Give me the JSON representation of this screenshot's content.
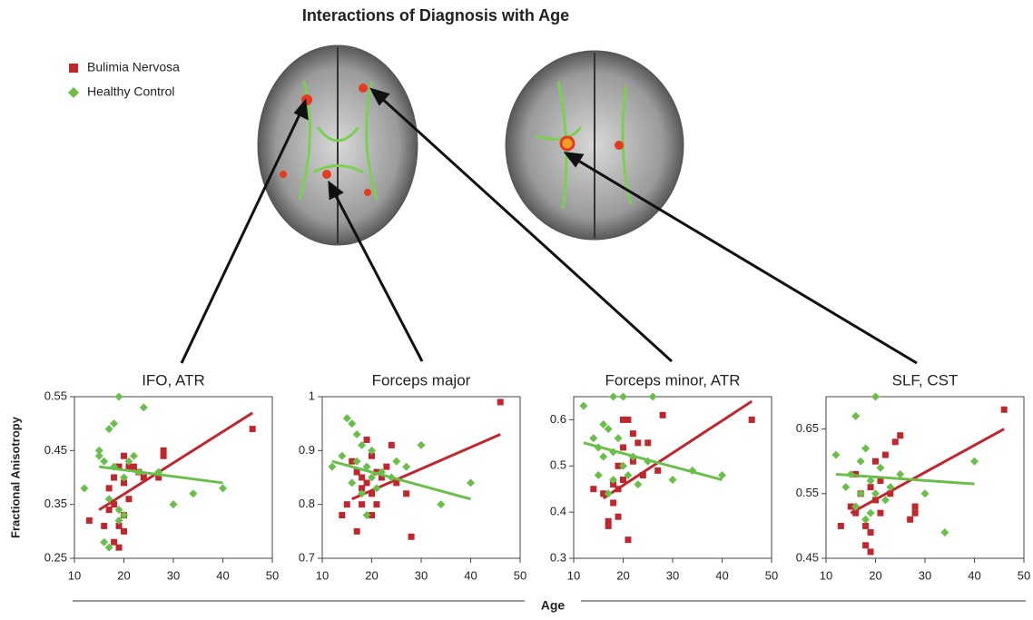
{
  "title": "Interactions of Diagnosis with Age",
  "xlabel": "Age",
  "chart_data": [
    {
      "type": "scatter",
      "title": "IFO, ATR",
      "ylabel": "Fractional Anisotropy",
      "xlim": [
        10,
        50
      ],
      "xticks": [
        10,
        20,
        30,
        40,
        50
      ],
      "ylim": [
        0.25,
        0.55
      ],
      "yticks": [
        0.25,
        0.35,
        0.45,
        0.55
      ],
      "series": [
        {
          "name": "Bulimia Nervosa",
          "color": "#c0272d",
          "marker": "square",
          "x": [
            13,
            16,
            17,
            17,
            18,
            18,
            19,
            19,
            19,
            20,
            20,
            20,
            21,
            21,
            22,
            23,
            24,
            27,
            28,
            28,
            46,
            18,
            20
          ],
          "values": [
            0.32,
            0.31,
            0.38,
            0.34,
            0.4,
            0.28,
            0.42,
            0.31,
            0.27,
            0.33,
            0.44,
            0.39,
            0.36,
            0.42,
            0.42,
            0.41,
            0.4,
            0.4,
            0.44,
            0.45,
            0.49,
            0.35,
            0.3
          ],
          "fit": {
            "x": [
              15,
              46
            ],
            "values": [
              0.34,
              0.52
            ]
          }
        },
        {
          "name": "Healthy Control",
          "color": "#6abf4b",
          "marker": "diamond",
          "x": [
            12,
            15,
            15,
            16,
            16,
            17,
            17,
            18,
            18,
            19,
            19,
            19,
            20,
            20,
            21,
            22,
            23,
            24,
            27,
            30,
            34,
            40,
            17
          ],
          "values": [
            0.38,
            0.44,
            0.45,
            0.43,
            0.28,
            0.49,
            0.36,
            0.5,
            0.42,
            0.55,
            0.32,
            0.34,
            0.33,
            0.4,
            0.43,
            0.44,
            0.41,
            0.53,
            0.41,
            0.35,
            0.37,
            0.38,
            0.27
          ],
          "fit": {
            "x": [
              15,
              40
            ],
            "values": [
              0.42,
              0.39
            ]
          }
        }
      ]
    },
    {
      "type": "scatter",
      "title": "Forceps major",
      "xlim": [
        10,
        50
      ],
      "xticks": [
        10,
        20,
        30,
        40,
        50
      ],
      "ylim": [
        0.7,
        1
      ],
      "yticks": [
        0.7,
        0.8,
        0.9,
        1
      ],
      "series": [
        {
          "name": "Bulimia Nervosa",
          "color": "#c0272d",
          "marker": "square",
          "x": [
            14,
            15,
            16,
            17,
            17,
            18,
            18,
            19,
            19,
            20,
            20,
            21,
            21,
            22,
            23,
            24,
            25,
            27,
            28,
            20,
            46,
            18
          ],
          "values": [
            0.78,
            0.8,
            0.88,
            0.75,
            0.86,
            0.85,
            0.8,
            0.92,
            0.84,
            0.82,
            0.78,
            0.86,
            0.8,
            0.85,
            0.87,
            0.91,
            0.84,
            0.82,
            0.74,
            0.89,
            0.99,
            0.83
          ],
          "fit": {
            "x": [
              16,
              46
            ],
            "values": [
              0.81,
              0.93
            ]
          }
        },
        {
          "name": "Healthy Control",
          "color": "#6abf4b",
          "marker": "diamond",
          "x": [
            12,
            14,
            15,
            16,
            16,
            17,
            17,
            18,
            18,
            19,
            20,
            20,
            21,
            22,
            24,
            25,
            27,
            30,
            34,
            40,
            19
          ],
          "values": [
            0.87,
            0.89,
            0.96,
            0.95,
            0.84,
            0.93,
            0.88,
            0.91,
            0.82,
            0.87,
            0.9,
            0.85,
            0.83,
            0.86,
            0.85,
            0.88,
            0.87,
            0.91,
            0.8,
            0.84,
            0.78
          ],
          "fit": {
            "x": [
              12,
              40
            ],
            "values": [
              0.88,
              0.81
            ]
          }
        }
      ]
    },
    {
      "type": "scatter",
      "title": "Forceps minor, ATR",
      "xlim": [
        10,
        50
      ],
      "xticks": [
        10,
        20,
        30,
        40,
        50
      ],
      "ylim": [
        0.3,
        0.65
      ],
      "yticks": [
        0.3,
        0.4,
        0.5,
        0.6
      ],
      "series": [
        {
          "name": "Bulimia Nervosa",
          "color": "#c0272d",
          "marker": "square",
          "x": [
            14,
            16,
            17,
            17,
            18,
            18,
            19,
            19,
            20,
            20,
            21,
            21,
            22,
            22,
            23,
            24,
            25,
            27,
            28,
            20,
            46,
            19
          ],
          "values": [
            0.45,
            0.44,
            0.38,
            0.37,
            0.46,
            0.42,
            0.39,
            0.45,
            0.6,
            0.54,
            0.6,
            0.34,
            0.51,
            0.57,
            0.55,
            0.48,
            0.55,
            0.49,
            0.61,
            0.47,
            0.6,
            0.5
          ],
          "fit": {
            "x": [
              16,
              46
            ],
            "values": [
              0.43,
              0.64
            ]
          }
        },
        {
          "name": "Healthy Control",
          "color": "#6abf4b",
          "marker": "diamond",
          "x": [
            12,
            14,
            15,
            15,
            16,
            16,
            17,
            17,
            18,
            18,
            19,
            20,
            20,
            21,
            22,
            23,
            25,
            26,
            30,
            34,
            40,
            18
          ],
          "values": [
            0.63,
            0.56,
            0.54,
            0.48,
            0.59,
            0.52,
            0.58,
            0.44,
            0.53,
            0.47,
            0.56,
            0.65,
            0.5,
            0.48,
            0.52,
            0.46,
            0.51,
            0.65,
            0.47,
            0.49,
            0.48,
            0.65
          ],
          "fit": {
            "x": [
              12,
              40
            ],
            "values": [
              0.55,
              0.47
            ]
          }
        }
      ]
    },
    {
      "type": "scatter",
      "title": "SLF, CST",
      "xlim": [
        10,
        50
      ],
      "xticks": [
        10,
        20,
        30,
        40,
        50
      ],
      "ylim": [
        0.45,
        0.7
      ],
      "yticks": [
        0.45,
        0.55,
        0.65
      ],
      "series": [
        {
          "name": "Bulimia Nervosa",
          "color": "#c0272d",
          "marker": "square",
          "x": [
            13,
            15,
            16,
            16,
            17,
            18,
            18,
            19,
            19,
            20,
            20,
            21,
            21,
            22,
            23,
            24,
            25,
            27,
            28,
            28,
            46,
            19
          ],
          "values": [
            0.5,
            0.53,
            0.58,
            0.52,
            0.55,
            0.5,
            0.47,
            0.56,
            0.49,
            0.54,
            0.6,
            0.57,
            0.52,
            0.61,
            0.55,
            0.63,
            0.64,
            0.51,
            0.53,
            0.52,
            0.68,
            0.46
          ],
          "fit": {
            "x": [
              15,
              46
            ],
            "values": [
              0.52,
              0.65
            ]
          }
        },
        {
          "name": "Healthy Control",
          "color": "#6abf4b",
          "marker": "diamond",
          "x": [
            12,
            14,
            15,
            16,
            16,
            17,
            17,
            18,
            18,
            19,
            20,
            20,
            21,
            22,
            23,
            25,
            30,
            34,
            40,
            19
          ],
          "values": [
            0.61,
            0.56,
            0.58,
            0.67,
            0.53,
            0.6,
            0.55,
            0.62,
            0.51,
            0.57,
            0.7,
            0.55,
            0.59,
            0.54,
            0.56,
            0.58,
            0.55,
            0.49,
            0.6,
            0.52
          ],
          "fit": {
            "x": [
              12,
              40
            ],
            "values": [
              0.58,
              0.565
            ]
          }
        }
      ]
    }
  ]
}
